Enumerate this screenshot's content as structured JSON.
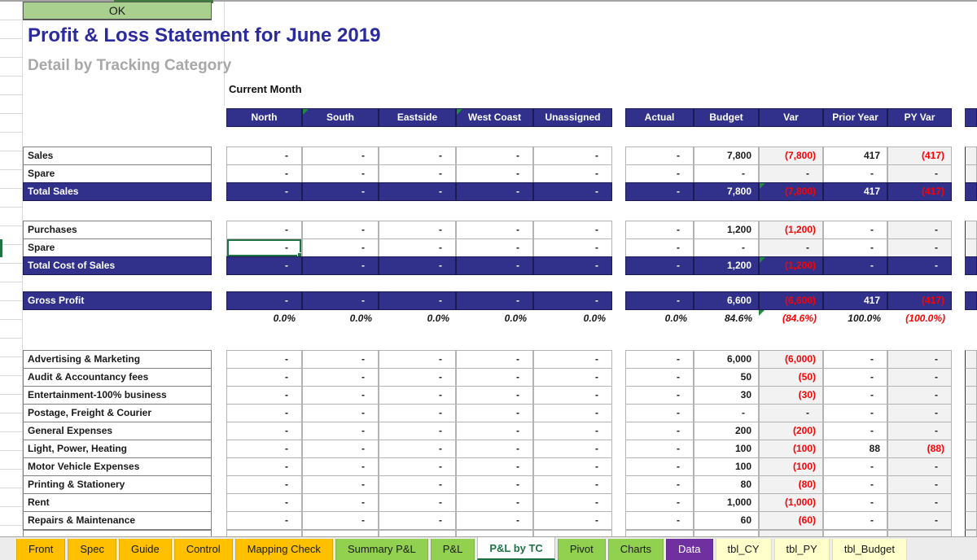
{
  "header": {
    "ok_label": "OK",
    "title": "Profit & Loss Statement for June 2019",
    "subtitle": "Detail by Tracking Category",
    "period_label": "Current Month"
  },
  "colors": {
    "navy": "#31318C",
    "negative_red": "#FF0000",
    "shade_gray": "#F2F2F2",
    "selection_green": "#217346",
    "title_blue": "#2B2B9E",
    "subtitle_gray": "#A8A8A8",
    "ok_button_green": "#A9D08E"
  },
  "table": {
    "tc_columns": [
      "North",
      "South",
      "Eastside",
      "West Coast",
      "Unassigned"
    ],
    "tc_header_flags": [
      false,
      true,
      false,
      true,
      false
    ],
    "cmp_columns": [
      "Actual",
      "Budget",
      "Var",
      "Prior Year",
      "PY Var"
    ],
    "rows": [
      {
        "type": "item",
        "label": "Sales",
        "tc": [
          "-",
          "-",
          "-",
          "-",
          "-"
        ],
        "cmp": [
          "-",
          "7,800",
          "(7,800)",
          "417",
          "(417)"
        ]
      },
      {
        "type": "item",
        "label": "Spare",
        "tc": [
          "-",
          "-",
          "-",
          "-",
          "-"
        ],
        "cmp": [
          "-",
          "-",
          "-",
          "-",
          "-"
        ]
      },
      {
        "type": "total",
        "label": "Total Sales",
        "tc": [
          "-",
          "-",
          "-",
          "-",
          "-"
        ],
        "cmp": [
          "-",
          "7,800",
          "(7,800)",
          "417",
          "(417)"
        ],
        "tri": true
      },
      {
        "type": "spacer",
        "h": 24
      },
      {
        "type": "item",
        "label": "Purchases",
        "tc": [
          "-",
          "-",
          "-",
          "-",
          "-"
        ],
        "cmp": [
          "-",
          "1,200",
          "(1,200)",
          "-",
          "-"
        ]
      },
      {
        "type": "item",
        "label": "Spare",
        "tc": [
          "-",
          "-",
          "-",
          "-",
          "-"
        ],
        "cmp": [
          "-",
          "-",
          "-",
          "-",
          "-"
        ],
        "selected_tc": 0
      },
      {
        "type": "total",
        "label": "Total Cost of Sales",
        "tc": [
          "-",
          "-",
          "-",
          "-",
          "-"
        ],
        "cmp": [
          "-",
          "1,200",
          "(1,200)",
          "-",
          "-"
        ],
        "tri": true
      },
      {
        "type": "spacer",
        "h": 20
      },
      {
        "type": "total",
        "label": "Gross Profit",
        "tc": [
          "-",
          "-",
          "-",
          "-",
          "-"
        ],
        "cmp": [
          "-",
          "6,600",
          "(6,600)",
          "417",
          "(417)"
        ]
      },
      {
        "type": "percent",
        "tc": [
          "0.0%",
          "0.0%",
          "0.0%",
          "0.0%",
          "0.0%"
        ],
        "cmp": [
          "0.0%",
          "84.6%",
          "(84.6%)",
          "100.0%",
          "(100.0%)"
        ],
        "tri": true
      },
      {
        "type": "spacer",
        "h": 26
      },
      {
        "type": "item",
        "label": "Advertising & Marketing",
        "tc": [
          "-",
          "-",
          "-",
          "-",
          "-"
        ],
        "cmp": [
          "-",
          "6,000",
          "(6,000)",
          "-",
          "-"
        ]
      },
      {
        "type": "item",
        "label": "Audit & Accountancy fees",
        "tc": [
          "-",
          "-",
          "-",
          "-",
          "-"
        ],
        "cmp": [
          "-",
          "50",
          "(50)",
          "-",
          "-"
        ]
      },
      {
        "type": "item",
        "label": "Entertainment-100% business",
        "tc": [
          "-",
          "-",
          "-",
          "-",
          "-"
        ],
        "cmp": [
          "-",
          "30",
          "(30)",
          "-",
          "-"
        ]
      },
      {
        "type": "item",
        "label": "Postage, Freight & Courier",
        "tc": [
          "-",
          "-",
          "-",
          "-",
          "-"
        ],
        "cmp": [
          "-",
          "-",
          "-",
          "-",
          "-"
        ]
      },
      {
        "type": "item",
        "label": "General Expenses",
        "tc": [
          "-",
          "-",
          "-",
          "-",
          "-"
        ],
        "cmp": [
          "-",
          "200",
          "(200)",
          "-",
          "-"
        ]
      },
      {
        "type": "item",
        "label": "Light, Power, Heating",
        "tc": [
          "-",
          "-",
          "-",
          "-",
          "-"
        ],
        "cmp": [
          "-",
          "100",
          "(100)",
          "88",
          "(88)"
        ]
      },
      {
        "type": "item",
        "label": "Motor Vehicle Expenses",
        "tc": [
          "-",
          "-",
          "-",
          "-",
          "-"
        ],
        "cmp": [
          "-",
          "100",
          "(100)",
          "-",
          "-"
        ]
      },
      {
        "type": "item",
        "label": "Printing & Stationery",
        "tc": [
          "-",
          "-",
          "-",
          "-",
          "-"
        ],
        "cmp": [
          "-",
          "80",
          "(80)",
          "-",
          "-"
        ]
      },
      {
        "type": "item",
        "label": "Rent",
        "tc": [
          "-",
          "-",
          "-",
          "-",
          "-"
        ],
        "cmp": [
          "-",
          "1,000",
          "(1,000)",
          "-",
          "-"
        ]
      },
      {
        "type": "item",
        "label": "Repairs & Maintenance",
        "tc": [
          "-",
          "-",
          "-",
          "-",
          "-"
        ],
        "cmp": [
          "-",
          "60",
          "(60)",
          "-",
          "-"
        ]
      }
    ]
  },
  "tabs": [
    {
      "label": "Front",
      "bg": "#FFC000",
      "fg": "#1A1A1A"
    },
    {
      "label": "Spec",
      "bg": "#FFC000",
      "fg": "#1A1A1A"
    },
    {
      "label": "Guide",
      "bg": "#FFC000",
      "fg": "#1A1A1A"
    },
    {
      "label": "Control",
      "bg": "#FFC000",
      "fg": "#1A1A1A"
    },
    {
      "label": "Mapping Check",
      "bg": "#FFC000",
      "fg": "#1A1A1A"
    },
    {
      "label": "Summary P&L",
      "bg": "#92D050",
      "fg": "#1A1A1A"
    },
    {
      "label": "P&L",
      "bg": "#92D050",
      "fg": "#1A1A1A"
    },
    {
      "label": "P&L by TC",
      "bg": "#FFFFFF",
      "fg": "#1E7145",
      "active": true
    },
    {
      "label": "Pivot",
      "bg": "#92D050",
      "fg": "#1A1A1A"
    },
    {
      "label": "Charts",
      "bg": "#92D050",
      "fg": "#1A1A1A"
    },
    {
      "label": "Data",
      "bg": "#7030A0",
      "fg": "#FFFFFF"
    },
    {
      "label": "tbl_CY",
      "bg": "#FFFFCC",
      "fg": "#1A1A1A"
    },
    {
      "label": "tbl_PY",
      "bg": "#FFFFCC",
      "fg": "#1A1A1A"
    },
    {
      "label": "tbl_Budget",
      "bg": "#FFFFCC",
      "fg": "#1A1A1A"
    }
  ]
}
